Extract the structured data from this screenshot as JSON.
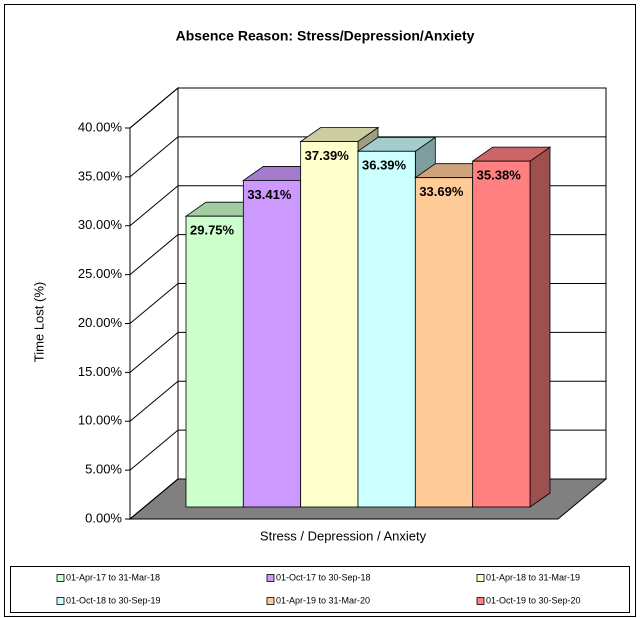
{
  "chart_data": {
    "type": "bar",
    "title": "Absence Reason:  Stress/Depression/Anxiety",
    "y_label": "Time Lost (%)",
    "categories": [
      "Stress / Depression / Anxiety"
    ],
    "series": [
      {
        "name": "01-Apr-17 to 31-Mar-18",
        "color": "#ccffcc",
        "values": [
          29.75
        ],
        "value_labels": [
          "29.75%"
        ]
      },
      {
        "name": "01-Oct-17 to 30-Sep-18",
        "color": "#cc99ff",
        "values": [
          33.41
        ],
        "value_labels": [
          "33.41%"
        ]
      },
      {
        "name": "01-Apr-18 to 31-Mar-19",
        "color": "#ffffcc",
        "values": [
          37.39
        ],
        "value_labels": [
          "37.39%"
        ]
      },
      {
        "name": "01-Oct-18 to 30-Sep-19",
        "color": "#ccffff",
        "values": [
          36.39
        ],
        "value_labels": [
          "36.39%"
        ]
      },
      {
        "name": "01-Apr-19 to 31-Mar-20",
        "color": "#ffcc99",
        "values": [
          33.69
        ],
        "value_labels": [
          "33.69%"
        ]
      },
      {
        "name": "01-Oct-19 to 30-Sep-20",
        "color": "#ff8080",
        "values": [
          35.38
        ],
        "value_labels": [
          "35.38%"
        ]
      }
    ],
    "ylim": [
      0,
      40
    ],
    "yticks": [
      {
        "value": 0,
        "label": "0.00%"
      },
      {
        "value": 5,
        "label": "5.00%"
      },
      {
        "value": 10,
        "label": "10.00%"
      },
      {
        "value": 15,
        "label": "15.00%"
      },
      {
        "value": 20,
        "label": "20.00%"
      },
      {
        "value": 25,
        "label": "25.00%"
      },
      {
        "value": 30,
        "label": "30.00%"
      },
      {
        "value": 35,
        "label": "35.00%"
      },
      {
        "value": 40,
        "label": "40.00%"
      }
    ],
    "grid": true,
    "legend": "bottom"
  }
}
